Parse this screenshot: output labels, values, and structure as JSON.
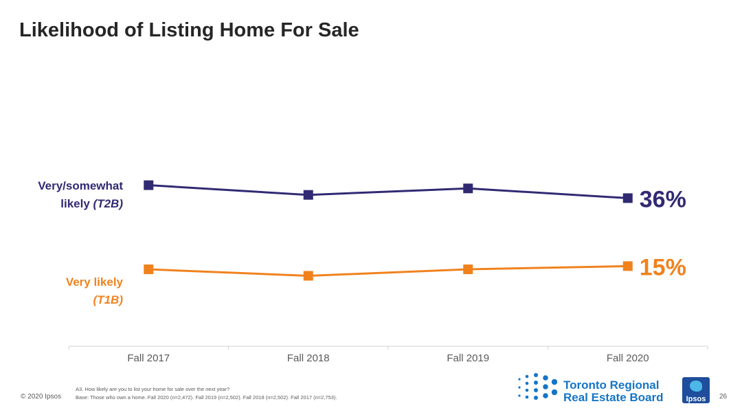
{
  "slide": {
    "title": "Likelihood of Listing Home For Sale",
    "copyright": "© 2020 Ipsos",
    "page_number": "26",
    "footnote_question": "A3. How likely are you to list your home for sale over the next year?",
    "footnote_base": "Base: Those who own a home. Fall 2020 (n=2,472). Fall 2019 (n=2,502). Fall 2018 (n=2,502). Fall 2017 (n=2,753)."
  },
  "logos": {
    "trreb_line1": "Toronto Regional",
    "trreb_line2": "Real Estate Board",
    "ipsos": "Ipsos"
  },
  "series_labels": {
    "t2b_main": "Very/somewhat",
    "t2b_second": "likely",
    "t2b_code": "(T2B)",
    "t1b_main": "Very likely",
    "t1b_code": "(T1B)"
  },
  "colors": {
    "t2b": "#302A73",
    "t1b": "#F0821E",
    "axis": "#D9D9D9",
    "tick_text": "#595959"
  },
  "chart_data": {
    "type": "line",
    "categories": [
      "Fall 2017",
      "Fall 2018",
      "Fall 2019",
      "Fall 2020"
    ],
    "series": [
      {
        "name": "Very/somewhat likely (T2B)",
        "values": [
          40,
          37,
          39,
          36
        ],
        "end_label": "36%",
        "color": "#302A73"
      },
      {
        "name": "Very likely (T1B)",
        "values": [
          14,
          12,
          14,
          15
        ],
        "end_label": "15%",
        "color": "#F0821E"
      }
    ],
    "title": "Likelihood of Listing Home For Sale",
    "xlabel": "",
    "ylabel": "",
    "ylim": [
      0,
      45
    ],
    "grid": false,
    "legend": "left"
  }
}
